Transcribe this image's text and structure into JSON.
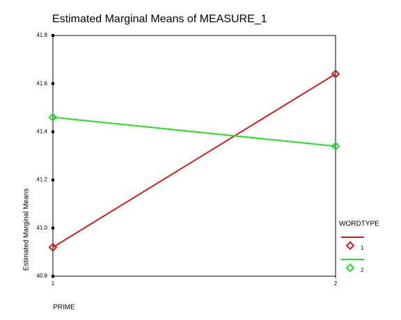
{
  "chart_data": {
    "type": "line",
    "title": "Estimated Marginal Means of MEASURE_1",
    "x_label": "PRIME",
    "y_label": "Estimated Marginal Means",
    "x": [
      1,
      2
    ],
    "xlim": [
      1,
      2
    ],
    "xticks": [
      1,
      2
    ],
    "ylim": [
      40.8,
      41.8
    ],
    "yticks": [
      40.8,
      {
        "value": 41,
        "label": "41.0"
      },
      41.2,
      41.4,
      41.6,
      41.8
    ],
    "legend_title": "WORDTYPE",
    "legend_position": "right",
    "series": [
      {
        "name": "1",
        "color": "#cc2020",
        "values": [
          40.92,
          41.64
        ]
      },
      {
        "name": "2",
        "color": "#22dd22",
        "values": [
          41.46,
          41.34
        ]
      }
    ]
  }
}
